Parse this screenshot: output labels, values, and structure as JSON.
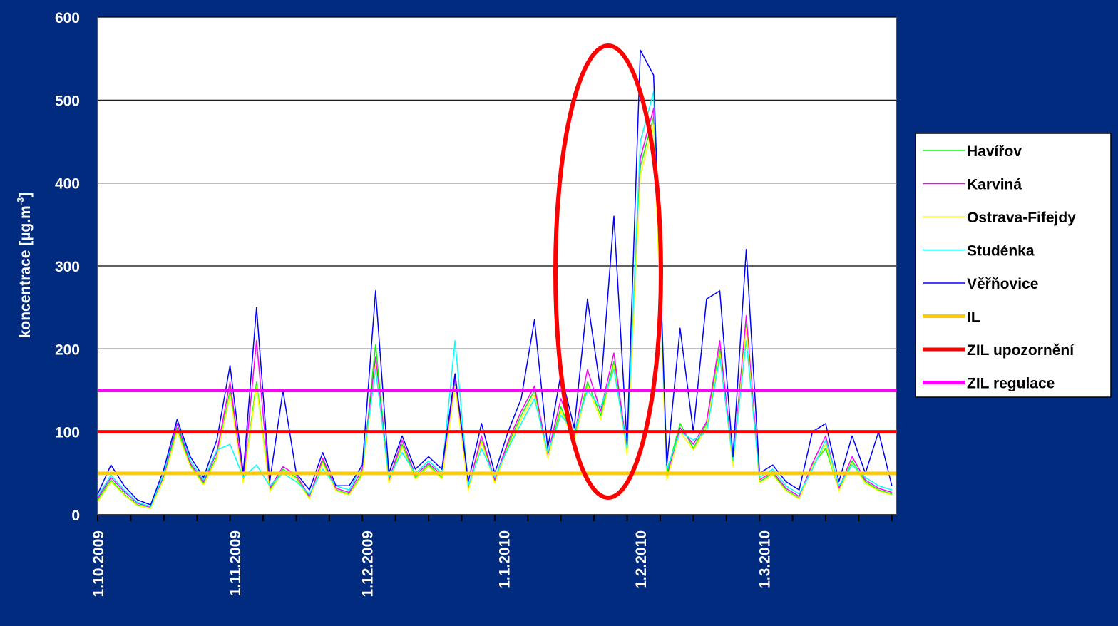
{
  "chart_data": {
    "type": "line",
    "ylabel_main": "koncentrace [µg.m",
    "ylabel_sup": "-3",
    "ylabel_end": "]",
    "ylim": [
      0,
      600
    ],
    "yticks": [
      0,
      100,
      200,
      300,
      400,
      500,
      600
    ],
    "xlim": [
      "2009-10-01",
      "2010-03-31"
    ],
    "xtick_labels": [
      "1.10.2009",
      "1.11.2009",
      "1.12.2009",
      "1.1.2010",
      "1.2.2010",
      "1.3.2010"
    ],
    "grid": "horizontal",
    "legend_position": "right",
    "x": [
      "2009-10-01",
      "2009-10-04",
      "2009-10-07",
      "2009-10-10",
      "2009-10-13",
      "2009-10-16",
      "2009-10-19",
      "2009-10-22",
      "2009-10-25",
      "2009-10-28",
      "2009-10-31",
      "2009-11-03",
      "2009-11-06",
      "2009-11-09",
      "2009-11-12",
      "2009-11-15",
      "2009-11-18",
      "2009-11-21",
      "2009-11-24",
      "2009-11-27",
      "2009-11-30",
      "2009-12-03",
      "2009-12-06",
      "2009-12-09",
      "2009-12-12",
      "2009-12-15",
      "2009-12-18",
      "2009-12-21",
      "2009-12-24",
      "2009-12-27",
      "2009-12-30",
      "2010-01-02",
      "2010-01-05",
      "2010-01-08",
      "2010-01-11",
      "2010-01-14",
      "2010-01-17",
      "2010-01-20",
      "2010-01-23",
      "2010-01-26",
      "2010-01-29",
      "2010-02-01",
      "2010-02-04",
      "2010-02-07",
      "2010-02-10",
      "2010-02-13",
      "2010-02-16",
      "2010-02-19",
      "2010-02-22",
      "2010-02-25",
      "2010-02-28",
      "2010-03-03",
      "2010-03-06",
      "2010-03-09",
      "2010-03-12",
      "2010-03-15",
      "2010-03-18",
      "2010-03-21",
      "2010-03-24",
      "2010-03-27",
      "2010-03-30"
    ],
    "series": [
      {
        "name": "Havířov",
        "color": "#00ff00",
        "width": 1.5,
        "values": [
          18,
          42,
          25,
          12,
          8,
          45,
          105,
          60,
          38,
          70,
          150,
          40,
          160,
          30,
          55,
          45,
          20,
          65,
          30,
          25,
          50,
          205,
          40,
          85,
          45,
          60,
          45,
          160,
          30,
          90,
          40,
          85,
          120,
          150,
          70,
          130,
          90,
          160,
          120,
          185,
          75,
          420,
          480,
          50,
          110,
          80,
          110,
          200,
          60,
          230,
          40,
          50,
          30,
          20,
          60,
          80,
          30,
          65,
          40,
          30,
          25
        ]
      },
      {
        "name": "Karviná",
        "color": "#ff00ff",
        "width": 1.5,
        "values": [
          20,
          45,
          28,
          14,
          9,
          48,
          110,
          62,
          40,
          75,
          160,
          42,
          210,
          32,
          58,
          48,
          22,
          68,
          32,
          27,
          55,
          190,
          42,
          90,
          48,
          62,
          48,
          165,
          32,
          95,
          42,
          88,
          125,
          155,
          72,
          140,
          95,
          175,
          125,
          195,
          78,
          430,
          490,
          45,
          105,
          85,
          112,
          210,
          62,
          240,
          42,
          52,
          32,
          22,
          62,
          95,
          32,
          70,
          42,
          32,
          27
        ]
      },
      {
        "name": "Ostrava-Fifejdy",
        "color": "#ffff00",
        "width": 1.5,
        "values": [
          16,
          40,
          24,
          11,
          8,
          43,
          100,
          58,
          36,
          68,
          145,
          38,
          155,
          28,
          52,
          43,
          19,
          62,
          29,
          24,
          48,
          180,
          38,
          82,
          43,
          58,
          43,
          155,
          29,
          88,
          38,
          82,
          115,
          145,
          68,
          125,
          88,
          155,
          115,
          180,
          72,
          410,
          470,
          42,
          100,
          78,
          105,
          195,
          58,
          225,
          38,
          48,
          29,
          19,
          58,
          85,
          29,
          62,
          38,
          29,
          24
        ]
      },
      {
        "name": "Studénka",
        "color": "#00ffff",
        "width": 1.5,
        "values": [
          22,
          48,
          30,
          15,
          10,
          50,
          115,
          65,
          42,
          78,
          85,
          45,
          60,
          35,
          50,
          40,
          25,
          55,
          35,
          30,
          60,
          175,
          45,
          75,
          50,
          65,
          50,
          210,
          35,
          80,
          45,
          80,
          110,
          140,
          75,
          120,
          100,
          150,
          130,
          175,
          80,
          450,
          510,
          55,
          100,
          90,
          100,
          190,
          65,
          210,
          45,
          55,
          35,
          25,
          55,
          90,
          35,
          60,
          45,
          35,
          30
        ]
      },
      {
        "name": "Věřňovice",
        "color": "#0000ff",
        "width": 1.5,
        "values": [
          25,
          60,
          35,
          18,
          12,
          55,
          115,
          70,
          45,
          90,
          180,
          50,
          250,
          40,
          150,
          50,
          30,
          75,
          35,
          35,
          60,
          270,
          50,
          95,
          55,
          70,
          55,
          170,
          40,
          110,
          50,
          100,
          140,
          235,
          80,
          170,
          105,
          260,
          150,
          360,
          85,
          560,
          530,
          60,
          225,
          100,
          260,
          270,
          70,
          320,
          50,
          60,
          40,
          30,
          100,
          110,
          40,
          95,
          50,
          100,
          35
        ]
      },
      {
        "name": "IL",
        "color": "#ffcc00",
        "width": 5,
        "values": "constant",
        "level": 50
      },
      {
        "name": "ZIL upozornění",
        "color": "#ff0000",
        "width": 5,
        "values": "constant",
        "level": 100
      },
      {
        "name": "ZIL regulace",
        "color": "#ff00ff",
        "width": 5,
        "values": "constant",
        "level": 150
      }
    ],
    "annotation": {
      "type": "ellipse",
      "color": "#ff0000",
      "highlight": "2010-01-22 to 2010-02-06 peak"
    }
  }
}
